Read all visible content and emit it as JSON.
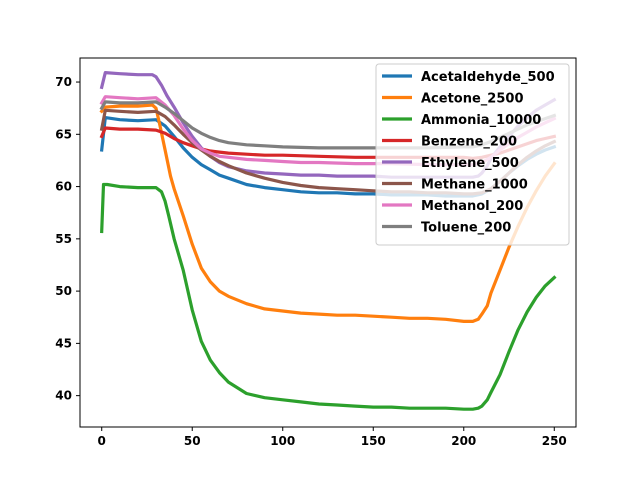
{
  "chart_data": {
    "type": "line",
    "title": "",
    "xlabel": "",
    "ylabel": "",
    "xlim": [
      -12,
      262
    ],
    "ylim": [
      37,
      72.3
    ],
    "xticks": [
      0,
      50,
      100,
      150,
      200,
      250
    ],
    "yticks": [
      40,
      45,
      50,
      55,
      60,
      65,
      70
    ],
    "legend_position": "top-right",
    "grid": false,
    "series": [
      {
        "name": "Acetaldehyde_500",
        "color": "#1f77b4",
        "x": [
          0,
          2,
          10,
          20,
          30,
          35,
          40,
          45,
          50,
          55,
          60,
          65,
          70,
          80,
          90,
          100,
          110,
          120,
          130,
          140,
          150,
          160,
          170,
          180,
          190,
          200,
          205,
          210,
          215,
          220,
          225,
          230,
          235,
          240,
          245,
          250
        ],
        "y": [
          63.5,
          66.6,
          66.4,
          66.3,
          66.4,
          65.8,
          64.8,
          63.7,
          62.8,
          62.1,
          61.6,
          61.1,
          60.8,
          60.2,
          59.9,
          59.7,
          59.5,
          59.4,
          59.4,
          59.3,
          59.3,
          59.2,
          59.2,
          59.2,
          59.1,
          59.1,
          59.1,
          59.3,
          59.8,
          60.5,
          61.3,
          62.0,
          62.6,
          63.1,
          63.5,
          63.8
        ]
      },
      {
        "name": "Acetone_2500",
        "color": "#ff7f0e",
        "x": [
          0,
          2,
          10,
          20,
          28,
          30,
          32,
          35,
          38,
          40,
          45,
          50,
          55,
          60,
          65,
          70,
          80,
          90,
          100,
          110,
          120,
          130,
          140,
          150,
          160,
          170,
          180,
          190,
          200,
          205,
          208,
          210,
          213,
          215,
          220,
          225,
          230,
          235,
          240,
          245,
          250
        ],
        "y": [
          67.2,
          67.6,
          67.7,
          67.7,
          67.8,
          67.5,
          66.0,
          63.5,
          61.0,
          59.8,
          57.2,
          54.5,
          52.2,
          50.9,
          50.0,
          49.5,
          48.8,
          48.3,
          48.1,
          47.9,
          47.8,
          47.7,
          47.7,
          47.6,
          47.5,
          47.4,
          47.4,
          47.3,
          47.1,
          47.1,
          47.3,
          47.8,
          48.6,
          49.8,
          52.0,
          54.2,
          56.2,
          58.0,
          59.6,
          61.0,
          62.2
        ]
      },
      {
        "name": "Ammonia_10000",
        "color": "#2ca02c",
        "x": [
          0,
          1,
          3,
          10,
          20,
          25,
          30,
          33,
          35,
          37,
          40,
          45,
          50,
          55,
          60,
          65,
          70,
          80,
          90,
          100,
          110,
          120,
          130,
          140,
          150,
          160,
          170,
          180,
          190,
          200,
          205,
          208,
          210,
          213,
          215,
          220,
          225,
          230,
          235,
          240,
          245,
          250
        ],
        "y": [
          55.7,
          60.2,
          60.2,
          60.0,
          59.9,
          59.9,
          59.9,
          59.5,
          58.6,
          57.2,
          55.0,
          52.0,
          48.2,
          45.2,
          43.4,
          42.2,
          41.3,
          40.2,
          39.8,
          39.6,
          39.4,
          39.2,
          39.1,
          39.0,
          38.9,
          38.9,
          38.8,
          38.8,
          38.8,
          38.7,
          38.7,
          38.8,
          39.0,
          39.6,
          40.3,
          42.0,
          44.2,
          46.3,
          48.0,
          49.4,
          50.5,
          51.3
        ]
      },
      {
        "name": "Benzene_200",
        "color": "#d62728",
        "x": [
          0,
          2,
          10,
          20,
          30,
          35,
          40,
          45,
          50,
          55,
          60,
          65,
          70,
          80,
          90,
          100,
          120,
          140,
          160,
          180,
          200,
          205,
          210,
          215,
          220,
          225,
          230,
          235,
          240,
          245,
          250
        ],
        "y": [
          64.8,
          65.6,
          65.5,
          65.5,
          65.4,
          65.1,
          64.6,
          64.2,
          63.9,
          63.6,
          63.4,
          63.3,
          63.2,
          63.1,
          63.0,
          63.0,
          62.9,
          62.8,
          62.8,
          62.8,
          62.8,
          62.7,
          62.8,
          63.0,
          63.2,
          63.5,
          63.8,
          64.1,
          64.4,
          64.6,
          64.8
        ]
      },
      {
        "name": "Ethylene_500",
        "color": "#9467bd",
        "x": [
          0,
          2,
          10,
          20,
          28,
          30,
          33,
          36,
          40,
          45,
          50,
          55,
          60,
          65,
          70,
          80,
          90,
          100,
          110,
          120,
          130,
          140,
          150,
          160,
          170,
          180,
          190,
          200,
          205,
          208,
          210,
          213,
          215,
          220,
          225,
          230,
          235,
          240,
          245,
          250
        ],
        "y": [
          69.5,
          70.9,
          70.8,
          70.7,
          70.7,
          70.5,
          69.7,
          68.7,
          67.6,
          66.1,
          64.8,
          63.7,
          62.9,
          62.3,
          61.9,
          61.5,
          61.3,
          61.2,
          61.1,
          61.1,
          61.0,
          61.0,
          61.0,
          60.9,
          60.9,
          60.9,
          60.9,
          60.9,
          60.9,
          61.0,
          61.3,
          62.0,
          62.7,
          63.8,
          64.8,
          65.8,
          66.6,
          67.3,
          67.8,
          68.3
        ]
      },
      {
        "name": "Methane_1000",
        "color": "#8c564b",
        "x": [
          0,
          2,
          10,
          20,
          30,
          35,
          40,
          45,
          50,
          55,
          60,
          65,
          70,
          80,
          90,
          100,
          110,
          120,
          130,
          140,
          150,
          160,
          170,
          180,
          190,
          200,
          205,
          210,
          215,
          220,
          225,
          230,
          235,
          240,
          245,
          250
        ],
        "y": [
          65.5,
          67.3,
          67.2,
          67.1,
          67.2,
          66.7,
          65.9,
          65.0,
          64.2,
          63.5,
          62.9,
          62.4,
          62.0,
          61.3,
          60.8,
          60.4,
          60.1,
          59.9,
          59.8,
          59.7,
          59.6,
          59.5,
          59.5,
          59.4,
          59.4,
          59.3,
          59.3,
          59.4,
          59.8,
          60.5,
          61.3,
          62.1,
          62.8,
          63.4,
          63.9,
          64.3
        ]
      },
      {
        "name": "Methanol_200",
        "color": "#e377c2",
        "x": [
          0,
          2,
          10,
          20,
          30,
          35,
          40,
          45,
          50,
          55,
          60,
          65,
          70,
          80,
          90,
          100,
          110,
          120,
          140,
          160,
          180,
          200,
          205,
          210,
          215,
          220,
          225,
          230,
          235,
          240,
          245,
          250
        ],
        "y": [
          68.0,
          68.6,
          68.5,
          68.4,
          68.5,
          67.8,
          66.8,
          65.5,
          64.4,
          63.6,
          63.2,
          62.9,
          62.8,
          62.6,
          62.5,
          62.4,
          62.3,
          62.3,
          62.2,
          62.2,
          62.1,
          62.1,
          62.1,
          62.3,
          62.8,
          63.5,
          64.1,
          64.7,
          65.2,
          65.7,
          66.1,
          66.5
        ]
      },
      {
        "name": "Toluene_200",
        "color": "#7f7f7f",
        "x": [
          0,
          2,
          10,
          20,
          30,
          35,
          40,
          45,
          50,
          55,
          60,
          65,
          70,
          80,
          90,
          100,
          120,
          140,
          160,
          180,
          200,
          205,
          210,
          215,
          220,
          225,
          230,
          235,
          240,
          245,
          250
        ],
        "y": [
          67.5,
          68.1,
          68.0,
          68.0,
          68.1,
          67.6,
          67.0,
          66.3,
          65.6,
          65.1,
          64.7,
          64.4,
          64.2,
          64.0,
          63.9,
          63.8,
          63.7,
          63.7,
          63.7,
          63.7,
          63.8,
          63.8,
          64.0,
          64.3,
          64.7,
          65.1,
          65.5,
          65.9,
          66.2,
          66.5,
          66.8
        ]
      }
    ]
  }
}
